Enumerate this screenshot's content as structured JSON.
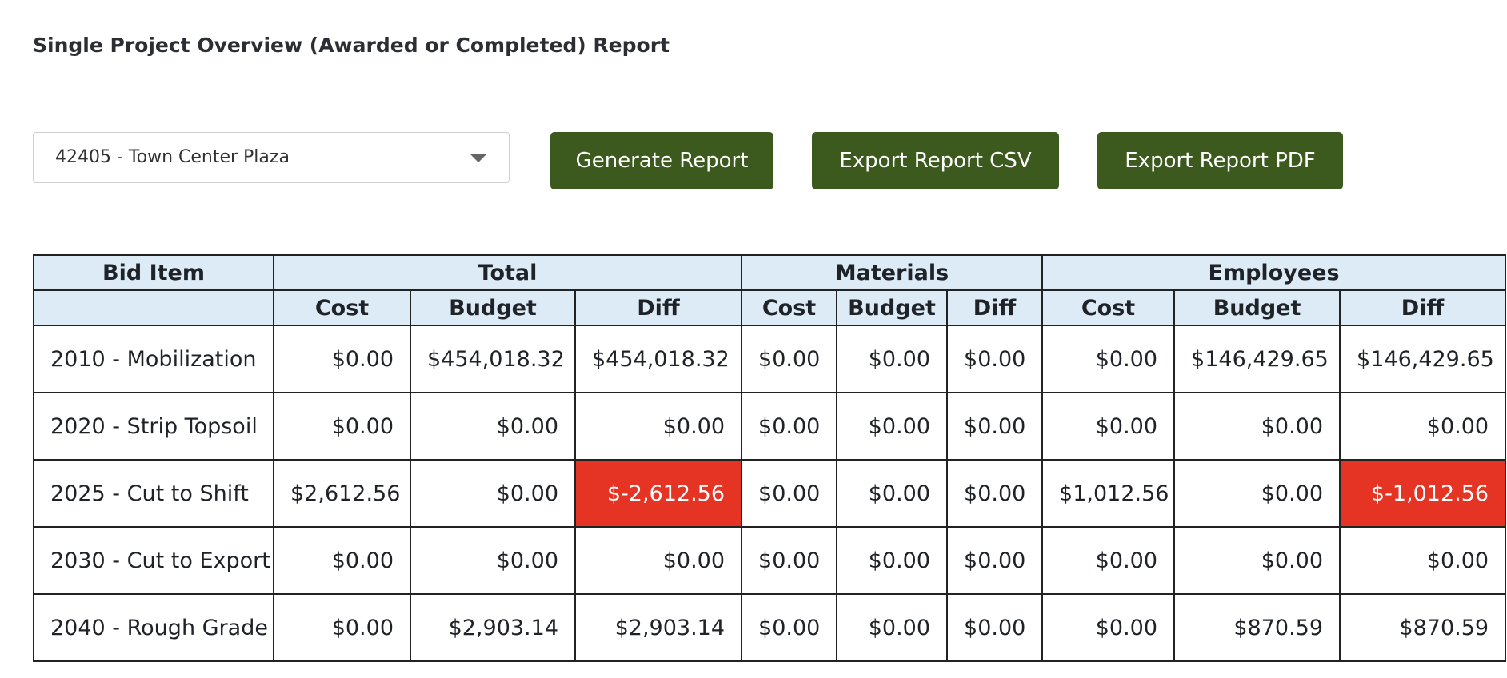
{
  "header": {
    "title": "Single Project Overview (Awarded or Completed) Report"
  },
  "controls": {
    "select": "42405 - Town Center Plaza",
    "buttons": [
      "Generate Report",
      "Export Report CSV",
      "Export Report PDF"
    ]
  },
  "table": {
    "groups": [
      "Bid Item",
      "Total",
      "Materials",
      "Employees"
    ],
    "subheaders": [
      "Cost",
      "Budget",
      "Diff",
      "Cost",
      "Budget",
      "Diff",
      "Cost",
      "Budget",
      "Diff"
    ],
    "rows": [
      [
        "2010 - Mobilization",
        "$0.00",
        "$454,018.32",
        "$454,018.32",
        "$0.00",
        "$0.00",
        "$0.00",
        "$0.00",
        "$146,429.65",
        "$146,429.65"
      ],
      [
        "2020 - Strip Topsoil",
        "$0.00",
        "$0.00",
        "$0.00",
        "$0.00",
        "$0.00",
        "$0.00",
        "$0.00",
        "$0.00",
        "$0.00"
      ],
      [
        "2025 - Cut to Shift",
        "$2,612.56",
        "$0.00",
        "$-2,612.56",
        "$0.00",
        "$0.00",
        "$0.00",
        "$1,012.56",
        "$0.00",
        "$-1,012.56"
      ],
      [
        "2030 - Cut to Export",
        "$0.00",
        "$0.00",
        "$0.00",
        "$0.00",
        "$0.00",
        "$0.00",
        "$0.00",
        "$0.00",
        "$0.00"
      ],
      [
        "2040 - Rough Grade",
        "$0.00",
        "$2,903.14",
        "$2,903.14",
        "$0.00",
        "$0.00",
        "$0.00",
        "$0.00",
        "$870.59",
        "$870.59"
      ]
    ]
  }
}
